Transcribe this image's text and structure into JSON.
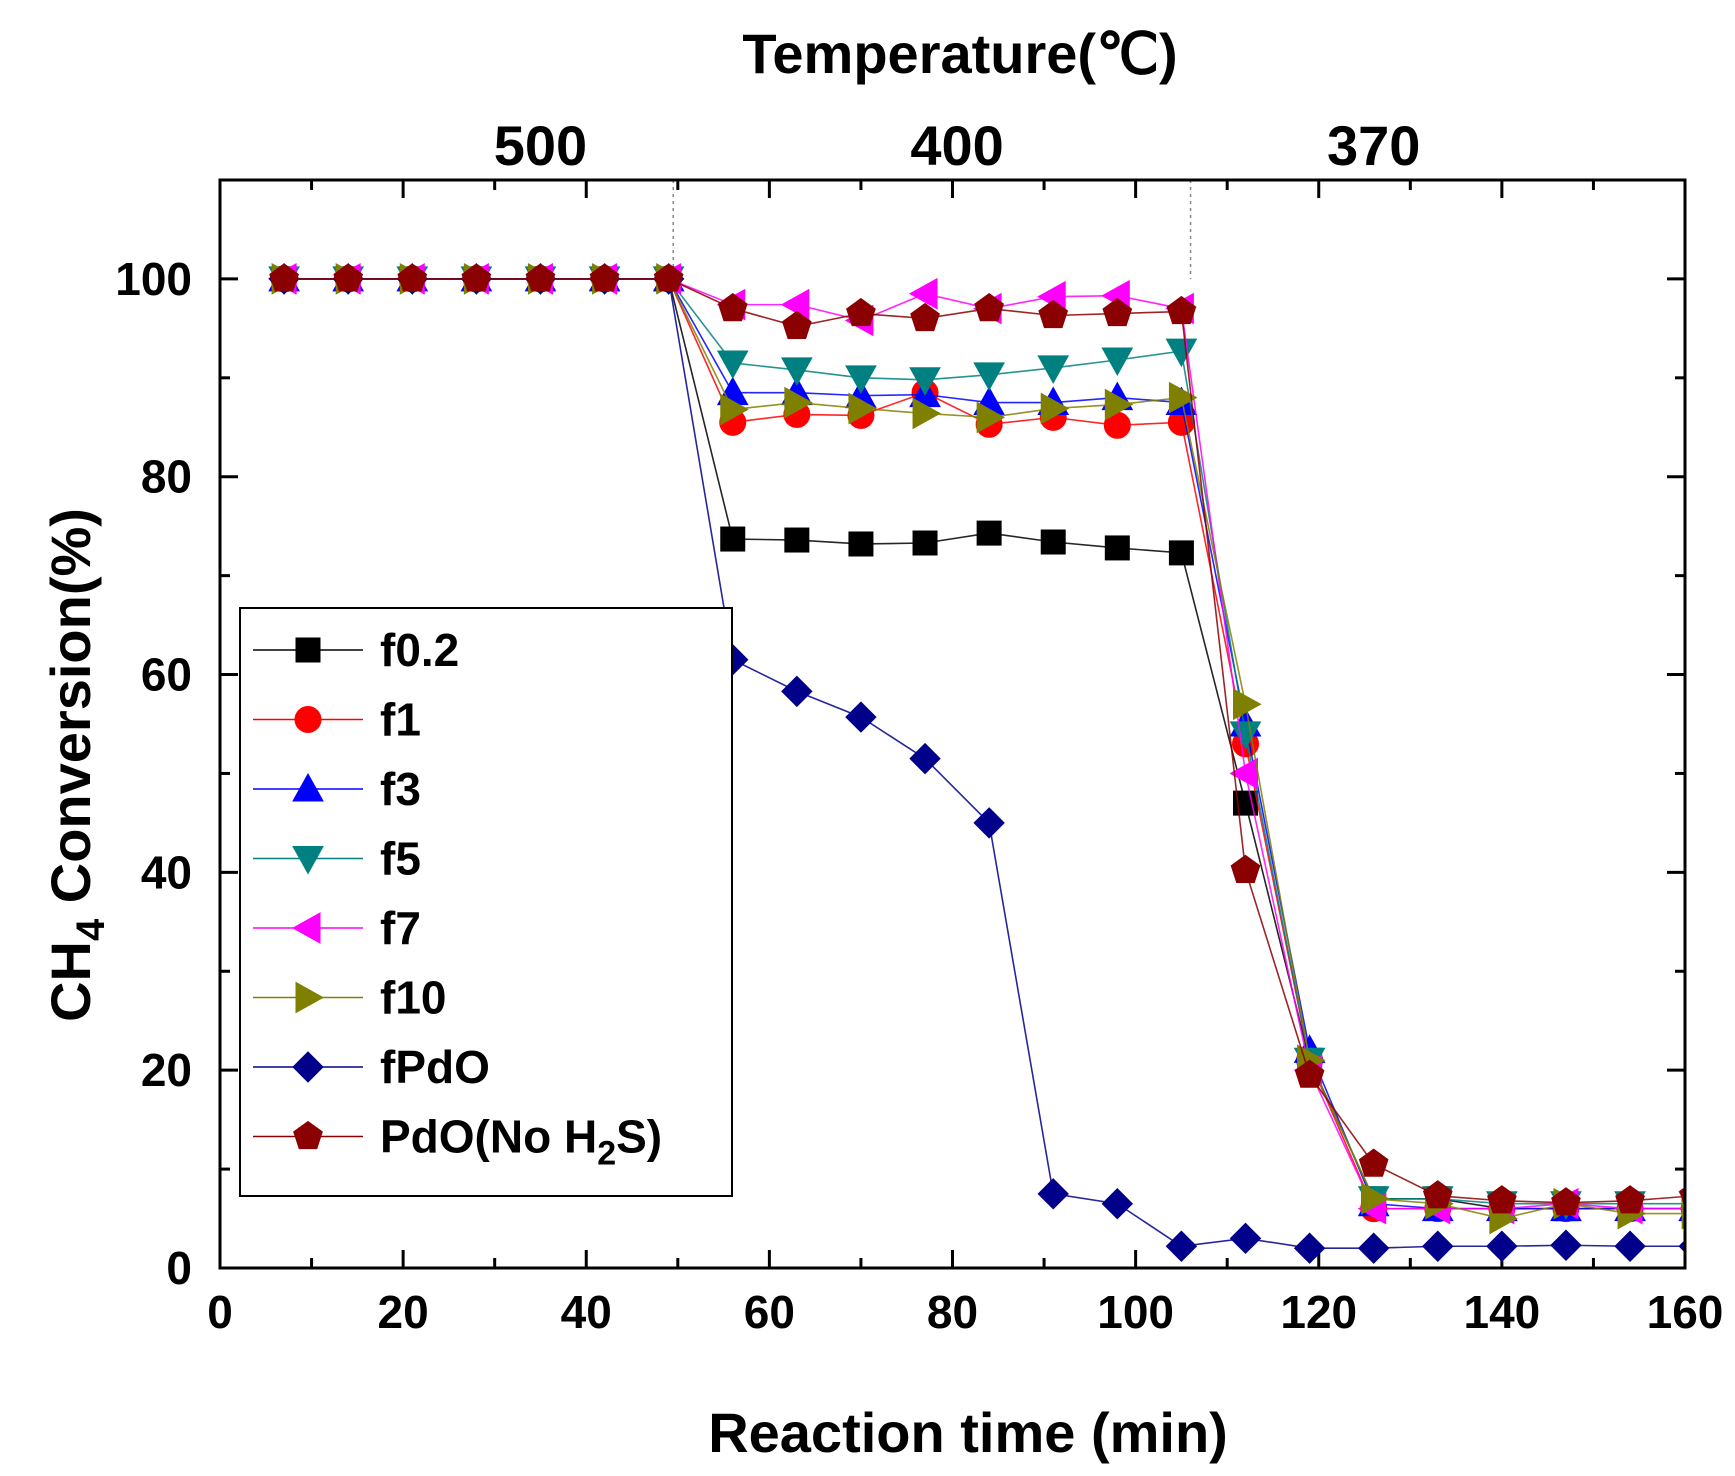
{
  "chart_data": {
    "type": "line",
    "xlabel": "Reaction time (min)",
    "ylabel_main": "CH",
    "ylabel_sub": "4",
    "ylabel_rest": " Conversion(%)",
    "top_axis_title": "Temperature(℃)",
    "xlim": [
      0,
      160
    ],
    "ylim": [
      0,
      110
    ],
    "xticks": [
      0,
      20,
      40,
      60,
      80,
      100,
      120,
      140,
      160
    ],
    "yticks": [
      0,
      20,
      40,
      60,
      80,
      100
    ],
    "temperature_regions": [
      {
        "label": "500",
        "x_center": 35
      },
      {
        "label": "400",
        "x_center": 80.5
      },
      {
        "label": "370",
        "x_center": 126
      }
    ],
    "region_dividers_x": [
      49.5,
      106
    ],
    "x": [
      7,
      14,
      21,
      28,
      35,
      42,
      49,
      56,
      63,
      70,
      77,
      84,
      91,
      98,
      105,
      112,
      119,
      126,
      133,
      140,
      147,
      154,
      161
    ],
    "series": [
      {
        "name": "f0.2",
        "color": "#000000",
        "marker": "square",
        "values": [
          100,
          100,
          100,
          100,
          100,
          100,
          100,
          73.7,
          73.6,
          73.2,
          73.3,
          74.3,
          73.4,
          72.8,
          72.3,
          47,
          21,
          7,
          7,
          6,
          6,
          6,
          6
        ]
      },
      {
        "name": "f1",
        "color": "#ff0000",
        "marker": "circle",
        "values": [
          100,
          100,
          100,
          100,
          100,
          100,
          100,
          85.5,
          86.3,
          86.2,
          88.5,
          85.3,
          86,
          85.2,
          85.5,
          53,
          21,
          6,
          6,
          6,
          6,
          6,
          6
        ]
      },
      {
        "name": "f3",
        "color": "#0000ff",
        "marker": "triangle-up",
        "values": [
          100,
          100,
          100,
          100,
          100,
          100,
          100,
          88.5,
          88.5,
          88.2,
          88.3,
          87.5,
          87.5,
          88,
          87.5,
          55,
          22,
          6.5,
          6,
          6,
          6,
          6,
          6
        ]
      },
      {
        "name": "f5",
        "color": "#008080",
        "marker": "triangle-down",
        "values": [
          100,
          100,
          100,
          100,
          100,
          100,
          100,
          91.5,
          90.8,
          90,
          89.8,
          90.3,
          91,
          91.8,
          92.7,
          54,
          21,
          7,
          7,
          6.5,
          6.5,
          6.5,
          6.5
        ]
      },
      {
        "name": "f7",
        "color": "#ff00ff",
        "marker": "triangle-left",
        "values": [
          100,
          100,
          100,
          100,
          100,
          100,
          100,
          97.4,
          97.4,
          95.8,
          98.5,
          97,
          98.2,
          98.3,
          97,
          50,
          20,
          6,
          6,
          6,
          6.5,
          6,
          6
        ]
      },
      {
        "name": "f10",
        "color": "#808000",
        "marker": "triangle-right",
        "values": [
          100,
          100,
          100,
          100,
          100,
          100,
          100,
          86.8,
          87.5,
          86.9,
          86.4,
          86,
          86.9,
          87.3,
          88,
          57,
          21,
          7,
          6.5,
          5,
          6.5,
          5.5,
          5.5
        ]
      },
      {
        "name": "fPdO",
        "color": "#00008b",
        "marker": "diamond",
        "values": [
          100,
          100,
          100,
          100,
          100,
          100,
          100,
          61.5,
          58.3,
          55.7,
          51.5,
          45,
          7.5,
          6.5,
          2.2,
          3,
          2,
          2,
          2.2,
          2.2,
          2.3,
          2.2,
          2.2
        ]
      },
      {
        "name": "PdO(No H₂S)",
        "color": "#8b0000",
        "marker": "pentagon",
        "values": [
          100,
          100,
          100,
          100,
          100,
          100,
          100,
          97,
          95.2,
          96.5,
          96,
          97,
          96.3,
          96.5,
          96.7,
          40.2,
          19.5,
          10.5,
          7.3,
          6.8,
          6.6,
          6.8,
          7.3
        ]
      }
    ],
    "legend": {
      "position": "left-middle",
      "labels": [
        "f0.2",
        "f1",
        "f3",
        "f5",
        "f7",
        "f10",
        "fPdO"
      ],
      "last_label_main": "PdO(No H",
      "last_label_sub": "2",
      "last_label_rest": "S)"
    },
    "grid": false
  }
}
